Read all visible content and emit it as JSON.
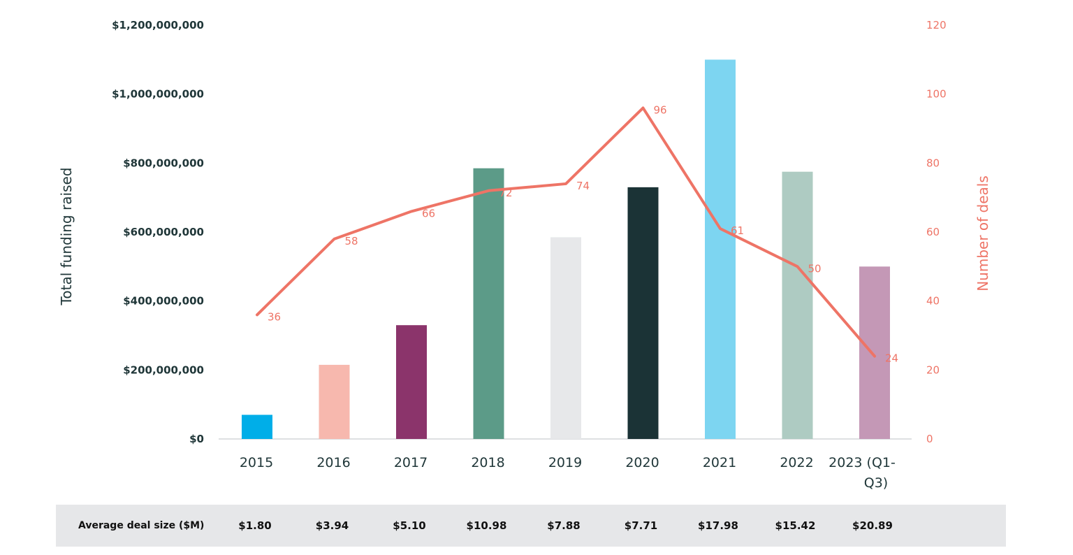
{
  "chart_data": {
    "type": "bar",
    "categories": [
      "2015",
      "2016",
      "2017",
      "2018",
      "2019",
      "2020",
      "2021",
      "2022",
      "2023 (Q1-Q3)"
    ],
    "category_lines": [
      [
        "2015"
      ],
      [
        "2016"
      ],
      [
        "2017"
      ],
      [
        "2018"
      ],
      [
        "2019"
      ],
      [
        "2020"
      ],
      [
        "2021"
      ],
      [
        "2022"
      ],
      [
        "2023 (Q1-",
        "Q3)"
      ]
    ],
    "series": [
      {
        "type": "bar",
        "axis": "left",
        "values": [
          70000000,
          215000000,
          330000000,
          785000000,
          585000000,
          730000000,
          1100000000,
          775000000,
          500000000
        ],
        "colors": [
          "#00aee8",
          "#f7b8ae",
          "#8b346b",
          "#5c9b88",
          "#e7e8ea",
          "#1b3336",
          "#7dd5f1",
          "#aecbc2",
          "#c498b6"
        ]
      },
      {
        "type": "line",
        "axis": "right",
        "color": "#ee7466",
        "values": [
          36,
          58,
          66,
          72,
          74,
          96,
          61,
          50,
          24
        ],
        "labels": [
          "36",
          "58",
          "66",
          "72",
          "74",
          "96",
          "61",
          "50",
          "24"
        ]
      }
    ],
    "ylabel_left": "Total funding raised",
    "ylabel_right": "Number of deals",
    "ylim_left": [
      0,
      1200000000
    ],
    "ylim_right": [
      0,
      120
    ],
    "yticks_left": [
      "$0",
      "$200,000,000",
      "$400,000,000",
      "$600,000,000",
      "$800,000,000",
      "$1,000,000,000",
      "$1,200,000,000"
    ],
    "yticks_right": [
      "0",
      "20",
      "40",
      "60",
      "80",
      "100",
      "120"
    ],
    "grid": false,
    "legend": "none"
  },
  "avg_deal_size": {
    "label": "Average deal size ($M)",
    "values": [
      "$1.80",
      "$3.94",
      "$5.10",
      "$10.98",
      "$7.88",
      "$7.71",
      "$17.98",
      "$15.42",
      "$20.89"
    ]
  },
  "colors": {
    "axis_text": "#1f3638",
    "line_accent": "#ee7466",
    "table_bg": "#e6e7e9"
  }
}
